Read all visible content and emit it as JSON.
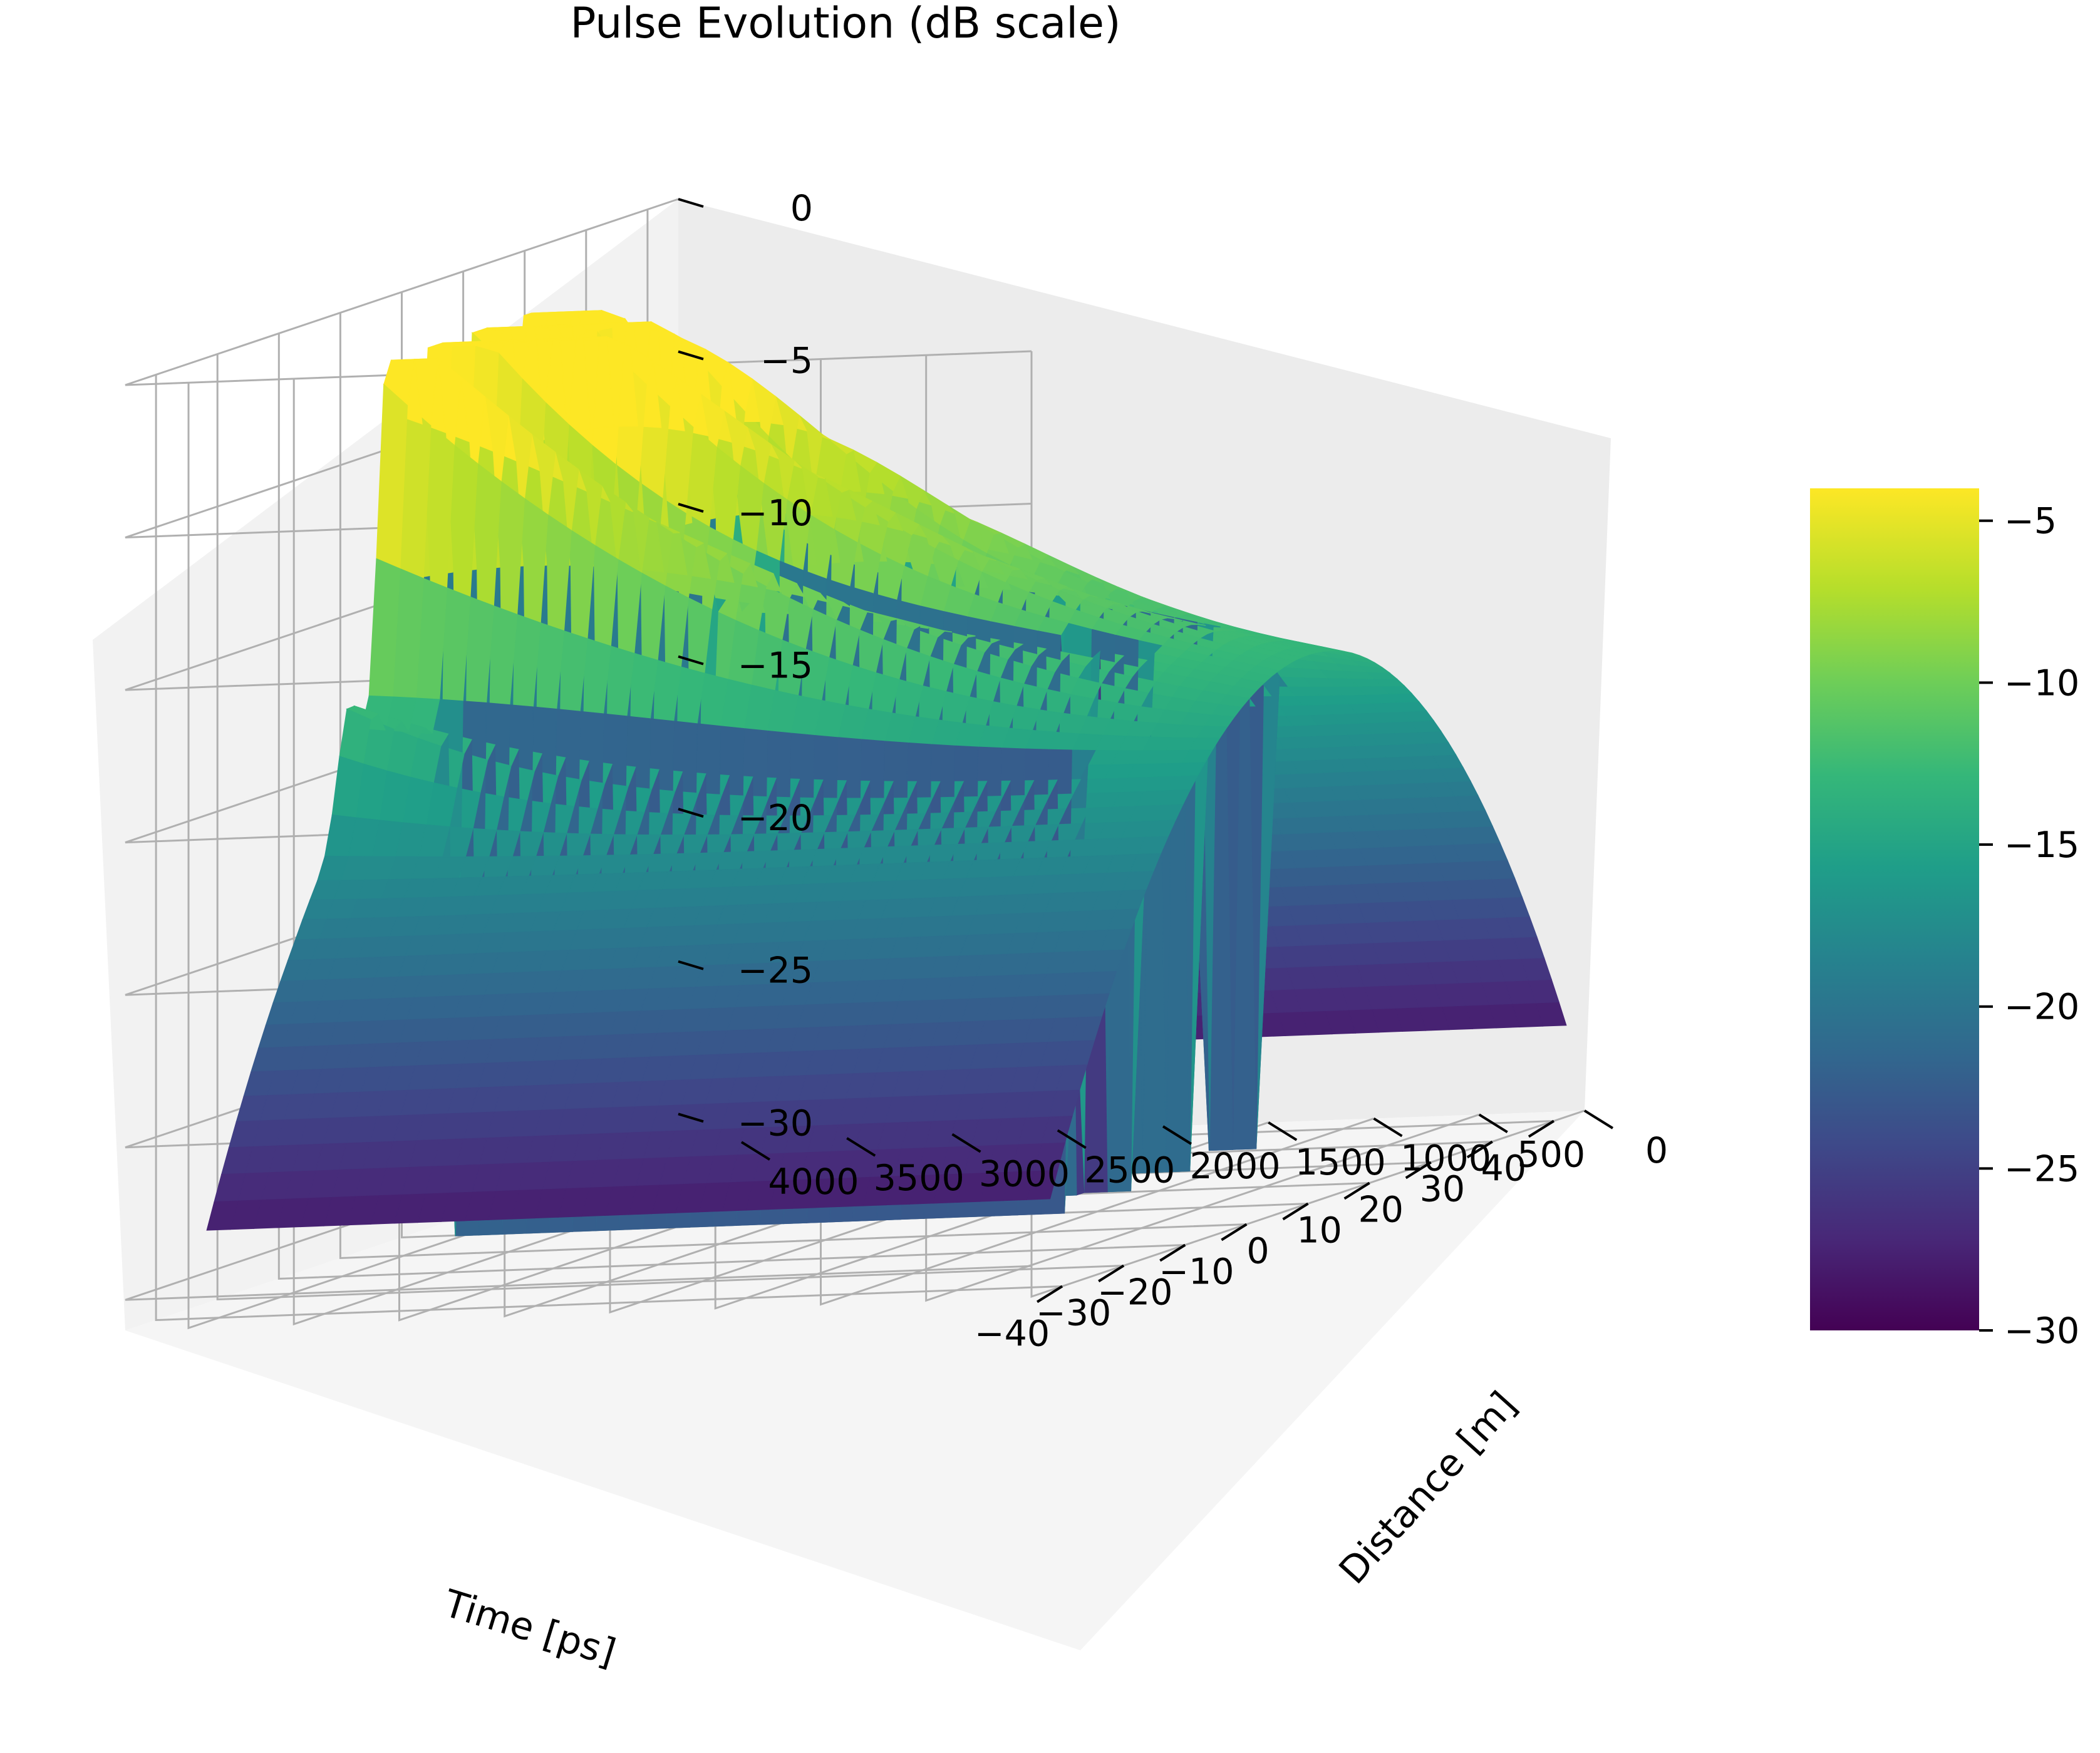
{
  "chart_data": {
    "type": "surface3d",
    "title": "Pulse Evolution (dB scale)",
    "xlabel": "Time [ps]",
    "ylabel": "Distance [m]",
    "zlabel": "",
    "x_ticks": [
      "−40",
      "−30",
      "−20",
      "−10",
      "0",
      "10",
      "20",
      "30",
      "40"
    ],
    "y_ticks": [
      "0",
      "500",
      "1000",
      "1500",
      "2000",
      "2500",
      "3000",
      "3500",
      "4000"
    ],
    "z_ticks": [
      "−30",
      "−25",
      "−20",
      "−15",
      "−10",
      "−5",
      "0"
    ],
    "xlim": [
      -45,
      45
    ],
    "ylim": [
      0,
      4300
    ],
    "zlim": [
      -31,
      0
    ],
    "grid": true,
    "colormap": "viridis",
    "colorbar": {
      "ticks": [
        "−30",
        "−25",
        "−20",
        "−15",
        "−10",
        "−5"
      ],
      "range": [
        -30,
        -4
      ]
    },
    "surface_description_values": {
      "floor_db": -30,
      "peak_db": -1.5,
      "input_peak_db": -13
    }
  },
  "colors": {
    "pane": "#f2f2f2",
    "grid": "#b0b0b0",
    "viridis": [
      "#440154",
      "#482878",
      "#3e4989",
      "#31688e",
      "#26828e",
      "#1f9e89",
      "#35b779",
      "#6ece58",
      "#b5de2b",
      "#fde725"
    ]
  }
}
